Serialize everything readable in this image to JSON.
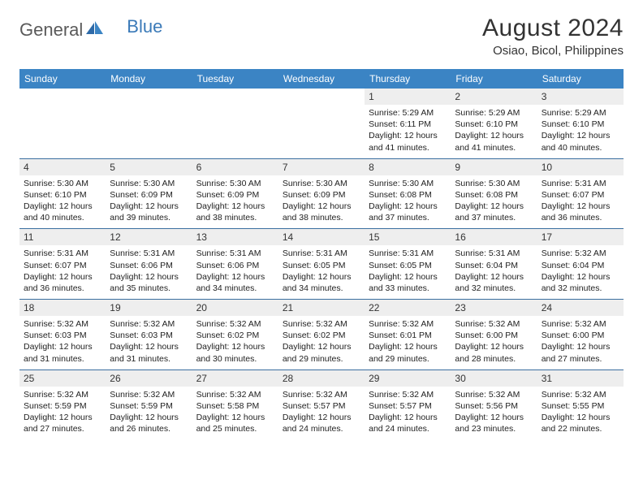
{
  "logo": {
    "text1": "General",
    "text2": "Blue"
  },
  "title": "August 2024",
  "location": "Osiao, Bicol, Philippines",
  "colors": {
    "header_bg": "#3b84c4",
    "header_text": "#ffffff",
    "daynum_bg": "#eeeeee",
    "row_border": "#3b6fa0",
    "logo_blue": "#3b7ab8"
  },
  "day_headers": [
    "Sunday",
    "Monday",
    "Tuesday",
    "Wednesday",
    "Thursday",
    "Friday",
    "Saturday"
  ],
  "weeks": [
    [
      {
        "n": "",
        "sr": "",
        "ss": "",
        "dl": ""
      },
      {
        "n": "",
        "sr": "",
        "ss": "",
        "dl": ""
      },
      {
        "n": "",
        "sr": "",
        "ss": "",
        "dl": ""
      },
      {
        "n": "",
        "sr": "",
        "ss": "",
        "dl": ""
      },
      {
        "n": "1",
        "sr": "5:29 AM",
        "ss": "6:11 PM",
        "dl": "12 hours and 41 minutes."
      },
      {
        "n": "2",
        "sr": "5:29 AM",
        "ss": "6:10 PM",
        "dl": "12 hours and 41 minutes."
      },
      {
        "n": "3",
        "sr": "5:29 AM",
        "ss": "6:10 PM",
        "dl": "12 hours and 40 minutes."
      }
    ],
    [
      {
        "n": "4",
        "sr": "5:30 AM",
        "ss": "6:10 PM",
        "dl": "12 hours and 40 minutes."
      },
      {
        "n": "5",
        "sr": "5:30 AM",
        "ss": "6:09 PM",
        "dl": "12 hours and 39 minutes."
      },
      {
        "n": "6",
        "sr": "5:30 AM",
        "ss": "6:09 PM",
        "dl": "12 hours and 38 minutes."
      },
      {
        "n": "7",
        "sr": "5:30 AM",
        "ss": "6:09 PM",
        "dl": "12 hours and 38 minutes."
      },
      {
        "n": "8",
        "sr": "5:30 AM",
        "ss": "6:08 PM",
        "dl": "12 hours and 37 minutes."
      },
      {
        "n": "9",
        "sr": "5:30 AM",
        "ss": "6:08 PM",
        "dl": "12 hours and 37 minutes."
      },
      {
        "n": "10",
        "sr": "5:31 AM",
        "ss": "6:07 PM",
        "dl": "12 hours and 36 minutes."
      }
    ],
    [
      {
        "n": "11",
        "sr": "5:31 AM",
        "ss": "6:07 PM",
        "dl": "12 hours and 36 minutes."
      },
      {
        "n": "12",
        "sr": "5:31 AM",
        "ss": "6:06 PM",
        "dl": "12 hours and 35 minutes."
      },
      {
        "n": "13",
        "sr": "5:31 AM",
        "ss": "6:06 PM",
        "dl": "12 hours and 34 minutes."
      },
      {
        "n": "14",
        "sr": "5:31 AM",
        "ss": "6:05 PM",
        "dl": "12 hours and 34 minutes."
      },
      {
        "n": "15",
        "sr": "5:31 AM",
        "ss": "6:05 PM",
        "dl": "12 hours and 33 minutes."
      },
      {
        "n": "16",
        "sr": "5:31 AM",
        "ss": "6:04 PM",
        "dl": "12 hours and 32 minutes."
      },
      {
        "n": "17",
        "sr": "5:32 AM",
        "ss": "6:04 PM",
        "dl": "12 hours and 32 minutes."
      }
    ],
    [
      {
        "n": "18",
        "sr": "5:32 AM",
        "ss": "6:03 PM",
        "dl": "12 hours and 31 minutes."
      },
      {
        "n": "19",
        "sr": "5:32 AM",
        "ss": "6:03 PM",
        "dl": "12 hours and 31 minutes."
      },
      {
        "n": "20",
        "sr": "5:32 AM",
        "ss": "6:02 PM",
        "dl": "12 hours and 30 minutes."
      },
      {
        "n": "21",
        "sr": "5:32 AM",
        "ss": "6:02 PM",
        "dl": "12 hours and 29 minutes."
      },
      {
        "n": "22",
        "sr": "5:32 AM",
        "ss": "6:01 PM",
        "dl": "12 hours and 29 minutes."
      },
      {
        "n": "23",
        "sr": "5:32 AM",
        "ss": "6:00 PM",
        "dl": "12 hours and 28 minutes."
      },
      {
        "n": "24",
        "sr": "5:32 AM",
        "ss": "6:00 PM",
        "dl": "12 hours and 27 minutes."
      }
    ],
    [
      {
        "n": "25",
        "sr": "5:32 AM",
        "ss": "5:59 PM",
        "dl": "12 hours and 27 minutes."
      },
      {
        "n": "26",
        "sr": "5:32 AM",
        "ss": "5:59 PM",
        "dl": "12 hours and 26 minutes."
      },
      {
        "n": "27",
        "sr": "5:32 AM",
        "ss": "5:58 PM",
        "dl": "12 hours and 25 minutes."
      },
      {
        "n": "28",
        "sr": "5:32 AM",
        "ss": "5:57 PM",
        "dl": "12 hours and 24 minutes."
      },
      {
        "n": "29",
        "sr": "5:32 AM",
        "ss": "5:57 PM",
        "dl": "12 hours and 24 minutes."
      },
      {
        "n": "30",
        "sr": "5:32 AM",
        "ss": "5:56 PM",
        "dl": "12 hours and 23 minutes."
      },
      {
        "n": "31",
        "sr": "5:32 AM",
        "ss": "5:55 PM",
        "dl": "12 hours and 22 minutes."
      }
    ]
  ],
  "labels": {
    "sunrise": "Sunrise: ",
    "sunset": "Sunset: ",
    "daylight": "Daylight: "
  }
}
